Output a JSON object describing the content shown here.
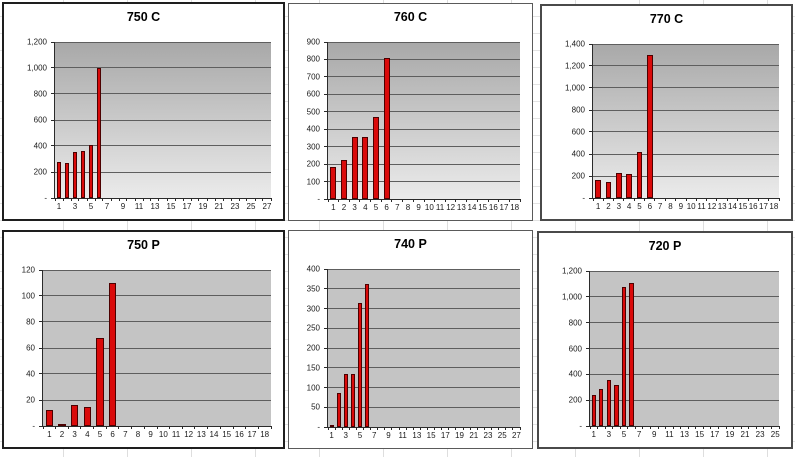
{
  "app": {
    "kind": "spreadsheet-embedded-charts",
    "sheet_background": "#ffffff",
    "sheet_grid_color": "#dedede"
  },
  "colors": {
    "bar_fill": "#da0a0a",
    "bar_border": "#4c0000",
    "gridline": "#5e5e5e",
    "axis": "#2b2b2b",
    "plot_flat": "#c4c4c4",
    "plot_gradient_top": "#a8a8a8",
    "plot_gradient_bottom": "#ebebeb",
    "chart_background": "#ffffff",
    "title_color": "#000000"
  },
  "chart_data": [
    {
      "type": "bar",
      "title": "750 C",
      "categories_count": 27,
      "bar_categories": [
        1,
        2,
        3,
        4,
        5,
        6
      ],
      "values": [
        280,
        270,
        355,
        365,
        410,
        1000
      ],
      "y_max": 1200,
      "y_ticks": [
        "1,200",
        "1,000",
        "800",
        "600",
        "400",
        "200",
        "-"
      ],
      "x_tick_labels": [
        "1",
        "3",
        "5",
        "7",
        "9",
        "11",
        "13",
        "15",
        "17",
        "19",
        "21",
        "23",
        "25",
        "27"
      ],
      "plot_fill": "gradient",
      "grid": true,
      "legend": false
    },
    {
      "type": "bar",
      "title": "760 C",
      "categories_count": 18,
      "bar_categories": [
        1,
        2,
        3,
        4,
        5,
        6
      ],
      "values": [
        185,
        225,
        355,
        355,
        470,
        810
      ],
      "y_max": 900,
      "y_ticks": [
        "900",
        "800",
        "700",
        "600",
        "500",
        "400",
        "300",
        "200",
        "100",
        "-"
      ],
      "x_tick_labels": [
        "1",
        "2",
        "3",
        "4",
        "5",
        "6",
        "7",
        "8",
        "9",
        "10",
        "11",
        "12",
        "13",
        "14",
        "15",
        "16",
        "17",
        "18"
      ],
      "plot_fill": "gradient",
      "grid": true,
      "legend": false
    },
    {
      "type": "bar",
      "title": "770 C",
      "categories_count": 18,
      "bar_categories": [
        1,
        2,
        3,
        4,
        5,
        6
      ],
      "values": [
        160,
        145,
        225,
        220,
        415,
        1300
      ],
      "y_max": 1400,
      "y_ticks": [
        "1,400",
        "1,200",
        "1,000",
        "800",
        "600",
        "400",
        "200",
        "-"
      ],
      "x_tick_labels": [
        "1",
        "2",
        "3",
        "4",
        "5",
        "6",
        "7",
        "8",
        "9",
        "10",
        "11",
        "12",
        "13",
        "14",
        "15",
        "16",
        "17",
        "18"
      ],
      "plot_fill": "gradient",
      "grid": true,
      "legend": false
    },
    {
      "type": "bar",
      "title": "750 P",
      "categories_count": 18,
      "bar_categories": [
        1,
        2,
        3,
        4,
        5,
        6
      ],
      "values": [
        12,
        1,
        16,
        15,
        68,
        110
      ],
      "y_max": 120,
      "y_ticks": [
        "120",
        "100",
        "80",
        "60",
        "40",
        "20",
        "-"
      ],
      "x_tick_labels": [
        "1",
        "2",
        "3",
        "4",
        "5",
        "6",
        "7",
        "8",
        "9",
        "10",
        "11",
        "12",
        "13",
        "14",
        "15",
        "16",
        "17",
        "18"
      ],
      "plot_fill": "flat",
      "grid": true,
      "legend": false
    },
    {
      "type": "bar",
      "title": "740 P",
      "categories_count": 27,
      "bar_categories": [
        1,
        2,
        3,
        4,
        5,
        6
      ],
      "values": [
        5,
        87,
        135,
        135,
        313,
        362
      ],
      "y_max": 400,
      "y_ticks": [
        "400",
        "350",
        "300",
        "250",
        "200",
        "150",
        "100",
        "50",
        "-"
      ],
      "x_tick_labels": [
        "1",
        "3",
        "5",
        "7",
        "9",
        "11",
        "13",
        "15",
        "17",
        "19",
        "21",
        "23",
        "25",
        "27"
      ],
      "plot_fill": "flat",
      "grid": true,
      "legend": false
    },
    {
      "type": "bar",
      "title": "720 P",
      "categories_count": 25,
      "bar_categories": [
        1,
        2,
        3,
        4,
        5,
        6
      ],
      "values": [
        240,
        290,
        355,
        320,
        1075,
        1110
      ],
      "y_max": 1200,
      "y_ticks": [
        "1,200",
        "1,000",
        "800",
        "600",
        "400",
        "200",
        "-"
      ],
      "x_tick_labels": [
        "1",
        "3",
        "5",
        "7",
        "9",
        "11",
        "13",
        "15",
        "17",
        "19",
        "21",
        "23",
        "25"
      ],
      "plot_fill": "flat",
      "grid": true,
      "legend": false
    }
  ]
}
